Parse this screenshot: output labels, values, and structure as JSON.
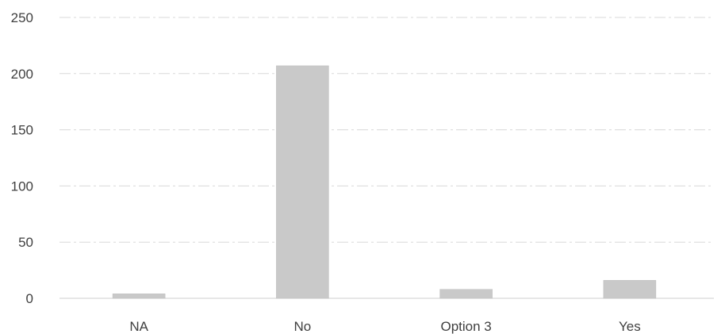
{
  "chart_data": {
    "type": "bar",
    "title": "",
    "xlabel": "",
    "ylabel": "",
    "categories": [
      "NA",
      "No",
      "Option 3",
      "Yes"
    ],
    "values": [
      4,
      207,
      8,
      16
    ],
    "ylim": [
      0,
      250
    ],
    "yticks": [
      0,
      50,
      100,
      150,
      200,
      250
    ],
    "grid": true,
    "legend": "none",
    "colors": {
      "bar": "#c9c9c9",
      "grid": "#d9d9d9",
      "text": "#3f3f3f"
    }
  }
}
